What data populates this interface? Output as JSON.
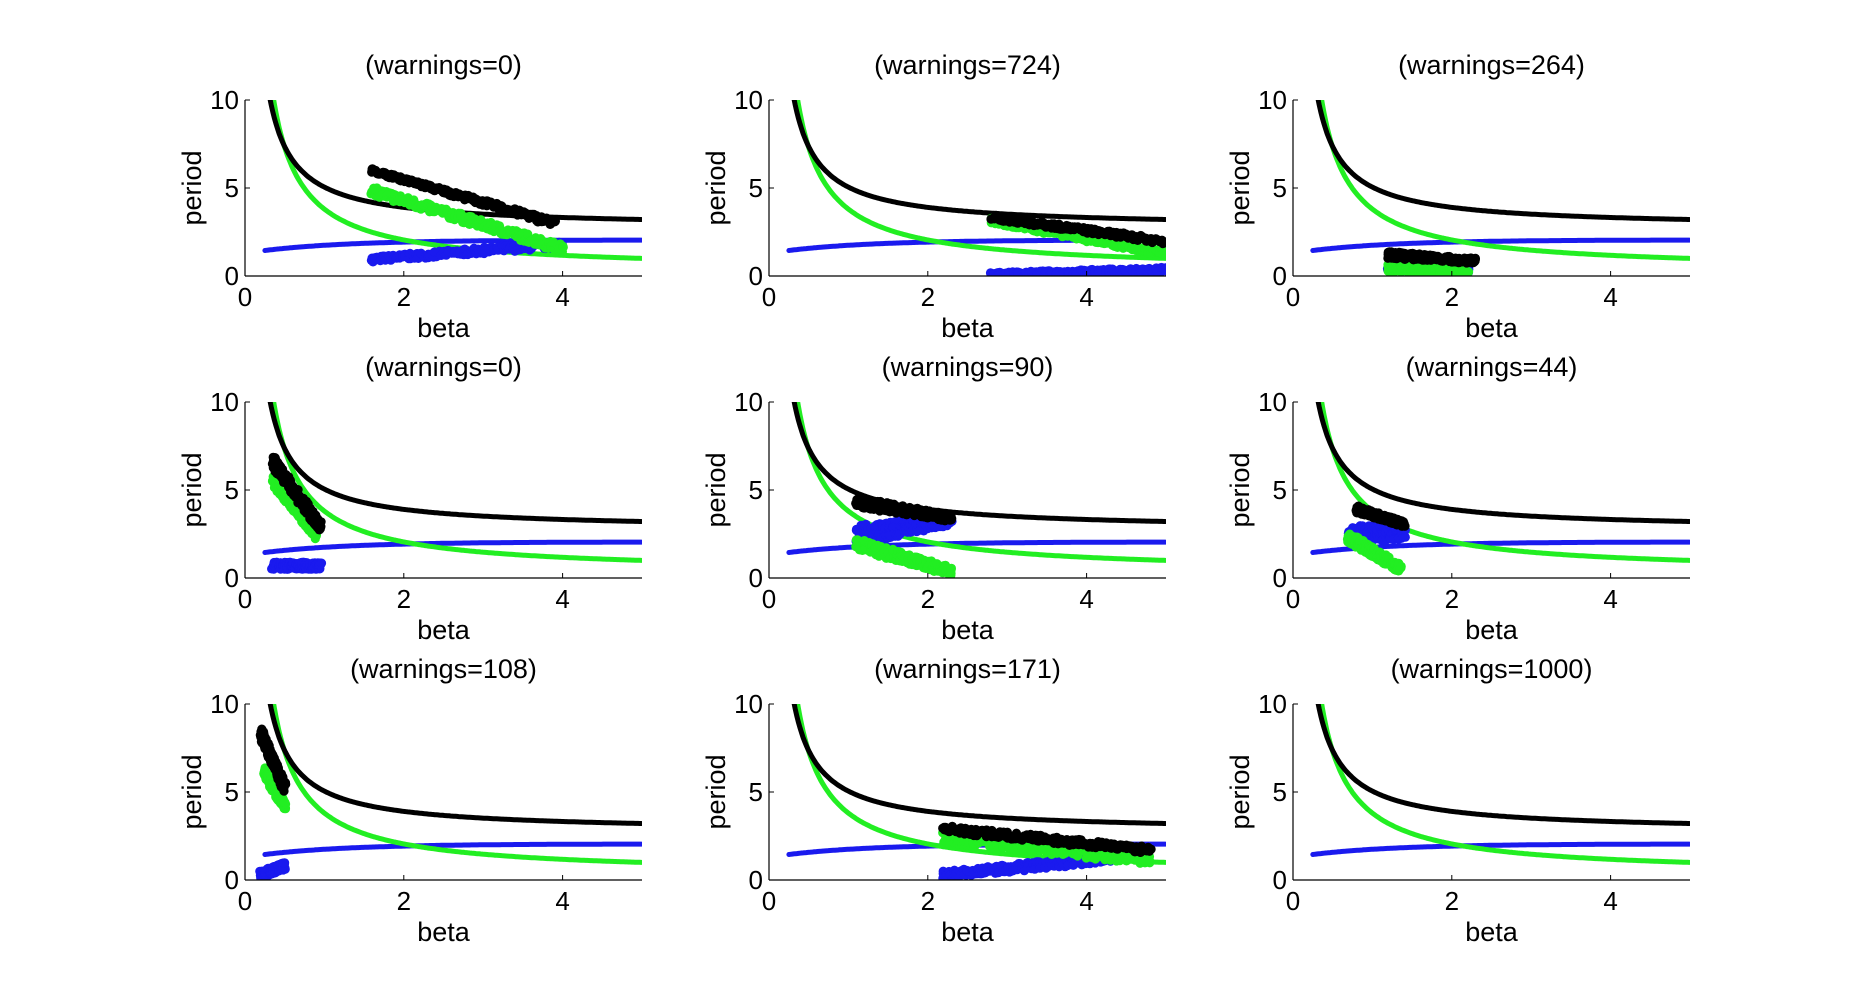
{
  "figure": {
    "layout": "3x3 grid",
    "colors": {
      "black": "#000000",
      "green": "#22ee22",
      "blue": "#1a1aee"
    }
  },
  "chart_data": [
    {
      "type": "scatter",
      "title": "(warnings=0)",
      "xlabel": "beta",
      "ylabel": "period",
      "xlim": [
        0,
        5
      ],
      "ylim": [
        0,
        10
      ],
      "xticks": [
        0,
        2,
        4
      ],
      "yticks": [
        0,
        5,
        10
      ],
      "clusters": {
        "black": {
          "x_range": [
            1.6,
            3.9
          ],
          "y_start": [
            5.9,
            6.1
          ],
          "y_end": [
            2.8,
            3.2
          ]
        },
        "green": {
          "x_range": [
            1.6,
            4.0
          ],
          "y_start": [
            4.6,
            5.1
          ],
          "y_end": [
            1.3,
            1.8
          ]
        },
        "blue": {
          "x_range": [
            1.6,
            4.0
          ],
          "y_start": [
            0.8,
            1.1
          ],
          "y_end": [
            1.6,
            2.0
          ]
        }
      }
    },
    {
      "type": "scatter",
      "title": "(warnings=724)",
      "xlabel": "beta",
      "ylabel": "period",
      "xlim": [
        0,
        5
      ],
      "ylim": [
        0,
        10
      ],
      "xticks": [
        0,
        2,
        4
      ],
      "yticks": [
        0,
        5,
        10
      ],
      "clusters": {
        "black": {
          "x_range": [
            2.8,
            5.0
          ],
          "y_start": [
            3.2,
            3.5
          ],
          "y_end": [
            1.8,
            2.1
          ]
        },
        "green": {
          "x_range": [
            2.8,
            5.0
          ],
          "y_start": [
            3.0,
            3.3
          ],
          "y_end": [
            1.1,
            1.4
          ]
        },
        "blue": {
          "x_range": [
            2.8,
            5.0
          ],
          "y_start": [
            0.0,
            0.2
          ],
          "y_end": [
            0.2,
            0.5
          ]
        }
      }
    },
    {
      "type": "scatter",
      "title": "(warnings=264)",
      "xlabel": "beta",
      "ylabel": "period",
      "xlim": [
        0,
        5
      ],
      "ylim": [
        0,
        10
      ],
      "xticks": [
        0,
        2,
        4
      ],
      "yticks": [
        0,
        5,
        10
      ],
      "clusters": {
        "black": {
          "x_range": [
            1.2,
            2.3
          ],
          "y_start": [
            1.0,
            1.4
          ],
          "y_end": [
            0.7,
            1.0
          ]
        },
        "green": {
          "x_range": [
            1.2,
            2.2
          ],
          "y_start": [
            0.2,
            0.8
          ],
          "y_end": [
            0.0,
            0.3
          ]
        },
        "blue": {
          "x_range": [
            1.2,
            2.2
          ],
          "y_start": [
            0.3,
            0.6
          ],
          "y_end": [
            0.2,
            0.4
          ]
        }
      }
    },
    {
      "type": "scatter",
      "title": "(warnings=0)",
      "xlabel": "beta",
      "ylabel": "period",
      "xlim": [
        0,
        5
      ],
      "ylim": [
        0,
        10
      ],
      "xticks": [
        0,
        2,
        4
      ],
      "yticks": [
        0,
        5,
        10
      ],
      "clusters": {
        "black": {
          "x_range": [
            0.35,
            0.95
          ],
          "y_start": [
            6.3,
            7.0
          ],
          "y_end": [
            2.6,
            3.2
          ]
        },
        "green": {
          "x_range": [
            0.35,
            0.9
          ],
          "y_start": [
            5.2,
            5.8
          ],
          "y_end": [
            2.2,
            2.7
          ]
        },
        "blue": {
          "x_range": [
            0.35,
            0.95
          ],
          "y_start": [
            0.5,
            0.9
          ],
          "y_end": [
            0.5,
            0.9
          ]
        }
      }
    },
    {
      "type": "scatter",
      "title": "(warnings=90)",
      "xlabel": "beta",
      "ylabel": "period",
      "xlim": [
        0,
        5
      ],
      "ylim": [
        0,
        10
      ],
      "xticks": [
        0,
        2,
        4
      ],
      "yticks": [
        0,
        5,
        10
      ],
      "clusters": {
        "black": {
          "x_range": [
            1.1,
            2.3
          ],
          "y_start": [
            4.0,
            4.6
          ],
          "y_end": [
            3.2,
            3.6
          ]
        },
        "green": {
          "x_range": [
            1.1,
            2.3
          ],
          "y_start": [
            1.6,
            2.3
          ],
          "y_end": [
            0.1,
            0.6
          ]
        },
        "blue": {
          "x_range": [
            1.1,
            2.3
          ],
          "y_start": [
            1.8,
            3.0
          ],
          "y_end": [
            3.0,
            3.6
          ]
        }
      }
    },
    {
      "type": "scatter",
      "title": "(warnings=44)",
      "xlabel": "beta",
      "ylabel": "period",
      "xlim": [
        0,
        5
      ],
      "ylim": [
        0,
        10
      ],
      "xticks": [
        0,
        2,
        4
      ],
      "yticks": [
        0,
        5,
        10
      ],
      "clusters": {
        "black": {
          "x_range": [
            0.8,
            1.4
          ],
          "y_start": [
            3.7,
            4.1
          ],
          "y_end": [
            2.9,
            3.2
          ]
        },
        "green": {
          "x_range": [
            0.7,
            1.35
          ],
          "y_start": [
            2.0,
            2.6
          ],
          "y_end": [
            0.3,
            0.8
          ]
        },
        "blue": {
          "x_range": [
            0.7,
            1.4
          ],
          "y_start": [
            2.0,
            3.0
          ],
          "y_end": [
            2.2,
            3.0
          ]
        }
      }
    },
    {
      "type": "scatter",
      "title": "(warnings=108)",
      "xlabel": "beta",
      "ylabel": "period",
      "xlim": [
        0,
        5
      ],
      "ylim": [
        0,
        10
      ],
      "xticks": [
        0,
        2,
        4
      ],
      "yticks": [
        0,
        5,
        10
      ],
      "clusters": {
        "black": {
          "x_range": [
            0.2,
            0.5
          ],
          "y_start": [
            8.0,
            8.7
          ],
          "y_end": [
            4.9,
            5.5
          ]
        },
        "green": {
          "x_range": [
            0.25,
            0.5
          ],
          "y_start": [
            5.8,
            6.4
          ],
          "y_end": [
            4.0,
            4.5
          ]
        },
        "blue": {
          "x_range": [
            0.2,
            0.5
          ],
          "y_start": [
            0.1,
            0.5
          ],
          "y_end": [
            0.6,
            1.0
          ]
        }
      }
    },
    {
      "type": "scatter",
      "title": "(warnings=171)",
      "xlabel": "beta",
      "ylabel": "period",
      "xlim": [
        0,
        5
      ],
      "ylim": [
        0,
        10
      ],
      "xticks": [
        0,
        2,
        4
      ],
      "yticks": [
        0,
        5,
        10
      ],
      "clusters": {
        "black": {
          "x_range": [
            2.2,
            4.8
          ],
          "y_start": [
            2.7,
            3.1
          ],
          "y_end": [
            1.5,
            1.9
          ]
        },
        "green": {
          "x_range": [
            2.2,
            4.8
          ],
          "y_start": [
            2.0,
            2.8
          ],
          "y_end": [
            0.9,
            1.4
          ]
        },
        "blue": {
          "x_range": [
            2.2,
            4.3
          ],
          "y_start": [
            0.1,
            0.5
          ],
          "y_end": [
            1.0,
            1.5
          ]
        }
      }
    },
    {
      "type": "scatter",
      "title": "(warnings=1000)",
      "xlabel": "beta",
      "ylabel": "period",
      "xlim": [
        0,
        5
      ],
      "ylim": [
        0,
        10
      ],
      "xticks": [
        0,
        2,
        4
      ],
      "yticks": [
        0,
        5,
        10
      ],
      "clusters": {}
    }
  ]
}
